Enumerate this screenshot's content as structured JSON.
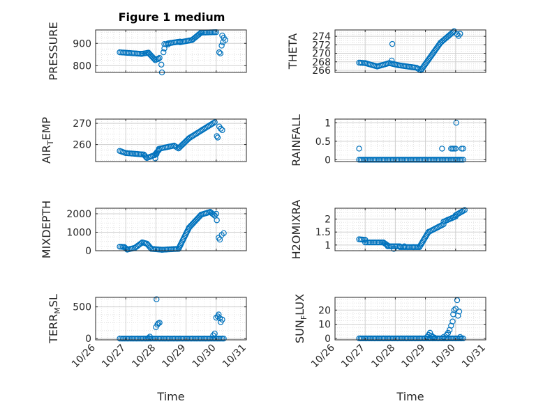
{
  "figure": {
    "title": "Figure 1 medium",
    "marker_color": "#0072bd",
    "grid_color": "#dcdcdc",
    "axis_color": "#262626"
  },
  "chart_data": [
    {
      "id": "pressure",
      "type": "scatter",
      "ylabel": "PRESSURE",
      "xlim": [
        "10/26",
        "10/31"
      ],
      "ylim": [
        770,
        960
      ],
      "yticks": [
        800,
        900
      ],
      "grid": true,
      "xtick_labels_shown": false,
      "segments": [
        {
          "x": [
            26.8,
            27.52
          ],
          "y": [
            860,
            853
          ]
        },
        {
          "x": [
            27.52,
            27.75
          ],
          "y": [
            853,
            858
          ]
        },
        {
          "x": [
            27.75,
            27.98
          ],
          "y": [
            858,
            825
          ]
        },
        {
          "x": [
            27.98,
            28.12
          ],
          "y": [
            825,
            835
          ]
        },
        {
          "x": [
            28.28,
            28.4
          ],
          "y": [
            897,
            895
          ]
        },
        {
          "x": [
            28.4,
            28.8
          ],
          "y": [
            900,
            908
          ]
        },
        {
          "x": [
            28.8,
            29.2
          ],
          "y": [
            905,
            915
          ]
        },
        {
          "x": [
            29.2,
            29.5
          ],
          "y": [
            915,
            948
          ]
        },
        {
          "x": [
            29.5,
            30.0
          ],
          "y": [
            948,
            950
          ]
        }
      ],
      "points": [
        {
          "x": 28.18,
          "y": 805
        },
        {
          "x": 28.2,
          "y": 770
        },
        {
          "x": 28.25,
          "y": 860
        },
        {
          "x": 28.28,
          "y": 877
        },
        {
          "x": 28.08,
          "y": 830
        },
        {
          "x": 30.1,
          "y": 860
        },
        {
          "x": 30.14,
          "y": 855
        },
        {
          "x": 30.18,
          "y": 890
        },
        {
          "x": 30.2,
          "y": 935
        },
        {
          "x": 30.25,
          "y": 925
        },
        {
          "x": 30.3,
          "y": 915
        },
        {
          "x": 30.22,
          "y": 905
        }
      ]
    },
    {
      "id": "theta",
      "type": "scatter",
      "ylabel": "THETA",
      "xlim": [
        "10/26",
        "10/31"
      ],
      "ylim": [
        265.5,
        275.5
      ],
      "yticks": [
        266,
        268,
        270,
        272,
        274
      ],
      "grid": true,
      "xtick_labels_shown": false,
      "segments": [
        {
          "x": [
            26.8,
            27.0
          ],
          "y": [
            267.8,
            267.7
          ]
        },
        {
          "x": [
            27.0,
            27.4
          ],
          "y": [
            267.7,
            266.9
          ]
        },
        {
          "x": [
            27.4,
            27.8
          ],
          "y": [
            266.9,
            267.7
          ]
        },
        {
          "x": [
            27.8,
            28.1
          ],
          "y": [
            267.7,
            267.2
          ]
        },
        {
          "x": [
            28.1,
            28.7
          ],
          "y": [
            267.2,
            266.6
          ]
        },
        {
          "x": [
            28.7,
            28.85
          ],
          "y": [
            266.6,
            266.0
          ]
        },
        {
          "x": [
            28.85,
            29.5
          ],
          "y": [
            266.0,
            272.5
          ]
        },
        {
          "x": [
            29.5,
            29.95
          ],
          "y": [
            272.5,
            275.2
          ]
        }
      ],
      "points": [
        {
          "x": 27.9,
          "y": 272.2
        },
        {
          "x": 27.88,
          "y": 268.3
        },
        {
          "x": 30.05,
          "y": 274.5
        },
        {
          "x": 30.1,
          "y": 274.1
        },
        {
          "x": 30.15,
          "y": 274.6
        }
      ]
    },
    {
      "id": "air_temp",
      "type": "scatter",
      "ylabel": "AIR_TEMP",
      "xlim": [
        "10/26",
        "10/31"
      ],
      "ylim": [
        252,
        272
      ],
      "yticks": [
        260,
        270
      ],
      "grid": true,
      "xtick_labels_shown": false,
      "segments": [
        {
          "x": [
            26.8,
            27.0
          ],
          "y": [
            257,
            256
          ]
        },
        {
          "x": [
            27.0,
            27.6
          ],
          "y": [
            256,
            255.3
          ]
        },
        {
          "x": [
            27.6,
            27.7
          ],
          "y": [
            255.3,
            253.7
          ]
        },
        {
          "x": [
            27.7,
            27.95
          ],
          "y": [
            253.7,
            255
          ]
        },
        {
          "x": [
            27.95,
            28.1
          ],
          "y": [
            255,
            257.5
          ]
        },
        {
          "x": [
            28.1,
            28.6
          ],
          "y": [
            258,
            259.5
          ]
        },
        {
          "x": [
            28.6,
            28.75
          ],
          "y": [
            259.5,
            258.2
          ]
        },
        {
          "x": [
            28.75,
            29.1
          ],
          "y": [
            258.2,
            263
          ]
        },
        {
          "x": [
            29.1,
            29.55
          ],
          "y": [
            263,
            267
          ]
        },
        {
          "x": [
            29.55,
            29.95
          ],
          "y": [
            267,
            270.5
          ]
        }
      ],
      "points": [
        {
          "x": 27.98,
          "y": 253.5
        },
        {
          "x": 28.02,
          "y": 255.5
        },
        {
          "x": 30.02,
          "y": 264
        },
        {
          "x": 30.05,
          "y": 263.3
        },
        {
          "x": 30.1,
          "y": 268.5
        },
        {
          "x": 30.15,
          "y": 267.5
        },
        {
          "x": 30.2,
          "y": 266.8
        }
      ]
    },
    {
      "id": "rainfall",
      "type": "scatter",
      "ylabel": "RAINFALL",
      "xlim": [
        "10/26",
        "10/31"
      ],
      "ylim": [
        -0.05,
        1.1
      ],
      "yticks": [
        0,
        0.5,
        1
      ],
      "grid": true,
      "xtick_labels_shown": false,
      "segments": [
        {
          "x": [
            26.8,
            30.25
          ],
          "y": [
            0,
            0
          ]
        }
      ],
      "points": [
        {
          "x": 26.8,
          "y": 0.3
        },
        {
          "x": 29.55,
          "y": 0.3
        },
        {
          "x": 29.85,
          "y": 0.3
        },
        {
          "x": 29.9,
          "y": 0.3
        },
        {
          "x": 29.95,
          "y": 0.3
        },
        {
          "x": 30.0,
          "y": 0.3
        },
        {
          "x": 30.2,
          "y": 0.3
        },
        {
          "x": 30.25,
          "y": 0.3
        },
        {
          "x": 30.02,
          "y": 1.0
        }
      ]
    },
    {
      "id": "mixdepth",
      "type": "scatter",
      "ylabel": "MIXDEPTH",
      "xlim": [
        "10/26",
        "10/31"
      ],
      "ylim": [
        0,
        2300
      ],
      "yticks": [
        0,
        1000,
        2000
      ],
      "grid": true,
      "xtick_labels_shown": false,
      "segments": [
        {
          "x": [
            26.8,
            26.95
          ],
          "y": [
            220,
            200
          ]
        },
        {
          "x": [
            26.95,
            27.05
          ],
          "y": [
            200,
            60
          ]
        },
        {
          "x": [
            27.05,
            27.3
          ],
          "y": [
            60,
            150
          ]
        },
        {
          "x": [
            27.3,
            27.55
          ],
          "y": [
            150,
            450
          ]
        },
        {
          "x": [
            27.55,
            27.7
          ],
          "y": [
            450,
            380
          ]
        },
        {
          "x": [
            27.7,
            27.85
          ],
          "y": [
            380,
            100
          ]
        },
        {
          "x": [
            27.85,
            28.2
          ],
          "y": [
            100,
            50
          ]
        },
        {
          "x": [
            28.2,
            28.75
          ],
          "y": [
            50,
            100
          ]
        },
        {
          "x": [
            28.75,
            29.1
          ],
          "y": [
            100,
            1250
          ]
        },
        {
          "x": [
            29.1,
            29.5
          ],
          "y": [
            1250,
            1950
          ]
        },
        {
          "x": [
            29.5,
            29.8
          ],
          "y": [
            1950,
            2100
          ]
        },
        {
          "x": [
            29.8,
            29.95
          ],
          "y": [
            2100,
            1900
          ]
        }
      ],
      "points": [
        {
          "x": 30.0,
          "y": 2000
        },
        {
          "x": 30.02,
          "y": 1650
        },
        {
          "x": 30.08,
          "y": 700
        },
        {
          "x": 30.12,
          "y": 600
        },
        {
          "x": 30.18,
          "y": 850
        },
        {
          "x": 30.25,
          "y": 950
        }
      ]
    },
    {
      "id": "h2omixra",
      "type": "scatter",
      "ylabel": "H2OMIXRA",
      "xlim": [
        "10/26",
        "10/31"
      ],
      "ylim": [
        0.78,
        2.42
      ],
      "yticks": [
        1,
        1.5,
        2
      ],
      "grid": true,
      "xtick_labels_shown": false,
      "segments": [
        {
          "x": [
            26.8,
            27.0
          ],
          "y": [
            1.22,
            1.2
          ]
        },
        {
          "x": [
            27.0,
            27.6
          ],
          "y": [
            1.1,
            1.1
          ]
        },
        {
          "x": [
            27.6,
            27.75
          ],
          "y": [
            1.1,
            0.98
          ]
        },
        {
          "x": [
            27.75,
            28.15
          ],
          "y": [
            0.95,
            0.95
          ]
        },
        {
          "x": [
            28.15,
            28.8
          ],
          "y": [
            0.92,
            0.92
          ]
        },
        {
          "x": [
            28.8,
            29.1
          ],
          "y": [
            0.92,
            1.5
          ]
        },
        {
          "x": [
            29.1,
            29.6
          ],
          "y": [
            1.5,
            1.8
          ]
        },
        {
          "x": [
            29.6,
            30.0
          ],
          "y": [
            1.9,
            2.1
          ]
        },
        {
          "x": [
            30.0,
            30.3
          ],
          "y": [
            2.15,
            2.35
          ]
        }
      ],
      "points": [
        {
          "x": 27.95,
          "y": 0.85
        },
        {
          "x": 28.3,
          "y": 0.95
        },
        {
          "x": 28.6,
          "y": 0.92
        }
      ]
    },
    {
      "id": "terr_msl",
      "type": "scatter",
      "ylabel": "TERR_MSL",
      "xlim": [
        "10/26",
        "10/31"
      ],
      "ylim": [
        -20,
        650
      ],
      "yticks": [
        0,
        500
      ],
      "grid": true,
      "xtick_labels": [
        "10/26",
        "10/27",
        "10/28",
        "10/29",
        "10/30",
        "10/31"
      ],
      "xlabel": "Time",
      "segments": [
        {
          "x": [
            26.8,
            30.25
          ],
          "y": [
            0,
            0
          ]
        }
      ],
      "points": [
        {
          "x": 27.75,
          "y": 10
        },
        {
          "x": 27.8,
          "y": 30
        },
        {
          "x": 28.0,
          "y": 180
        },
        {
          "x": 28.05,
          "y": 220
        },
        {
          "x": 28.08,
          "y": 240
        },
        {
          "x": 28.12,
          "y": 250
        },
        {
          "x": 28.02,
          "y": 620
        },
        {
          "x": 29.9,
          "y": 50
        },
        {
          "x": 29.95,
          "y": 80
        },
        {
          "x": 30.0,
          "y": 330
        },
        {
          "x": 30.05,
          "y": 350
        },
        {
          "x": 30.08,
          "y": 380
        },
        {
          "x": 30.12,
          "y": 320
        },
        {
          "x": 30.15,
          "y": 260
        },
        {
          "x": 30.2,
          "y": 300
        }
      ]
    },
    {
      "id": "sun_flux",
      "type": "scatter",
      "ylabel": "SUN_FLUX",
      "xlim": [
        "10/26",
        "10/31"
      ],
      "ylim": [
        -1,
        29
      ],
      "yticks": [
        0,
        10,
        20
      ],
      "grid": true,
      "xtick_labels": [
        "10/26",
        "10/27",
        "10/28",
        "10/29",
        "10/30",
        "10/31"
      ],
      "xlabel": "Time",
      "segments": [
        {
          "x": [
            26.8,
            30.25
          ],
          "y": [
            0,
            0
          ]
        }
      ],
      "points": [
        {
          "x": 29.05,
          "y": 1
        },
        {
          "x": 29.1,
          "y": 2.5
        },
        {
          "x": 29.15,
          "y": 4
        },
        {
          "x": 29.2,
          "y": 2
        },
        {
          "x": 29.25,
          "y": 1
        },
        {
          "x": 29.3,
          "y": 0.5
        },
        {
          "x": 29.6,
          "y": 1
        },
        {
          "x": 29.7,
          "y": 2.5
        },
        {
          "x": 29.75,
          "y": 4
        },
        {
          "x": 29.8,
          "y": 6
        },
        {
          "x": 29.85,
          "y": 9
        },
        {
          "x": 29.9,
          "y": 12
        },
        {
          "x": 29.92,
          "y": 17
        },
        {
          "x": 29.95,
          "y": 20
        },
        {
          "x": 30.0,
          "y": 21
        },
        {
          "x": 30.05,
          "y": 27
        },
        {
          "x": 30.08,
          "y": 16
        },
        {
          "x": 30.12,
          "y": 19
        },
        {
          "x": 30.15,
          "y": 1
        }
      ]
    }
  ]
}
